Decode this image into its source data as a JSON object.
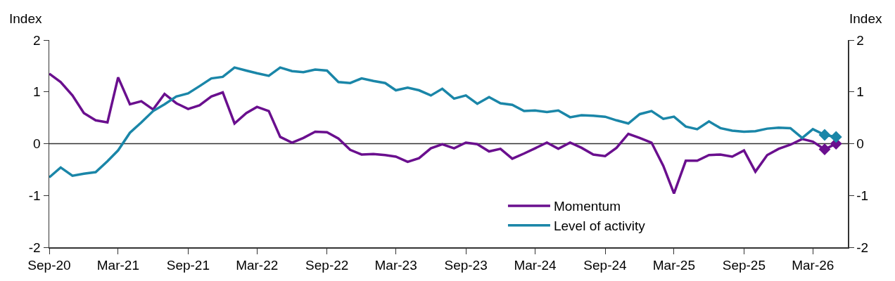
{
  "chart_data": {
    "type": "line",
    "ylabel": "Index",
    "y2label": "Index",
    "x": [
      "2020-09",
      "2020-10",
      "2020-11",
      "2020-12",
      "2021-01",
      "2021-02",
      "2021-03",
      "2021-04",
      "2021-05",
      "2021-06",
      "2021-07",
      "2021-08",
      "2021-09",
      "2021-10",
      "2021-11",
      "2021-12",
      "2022-01",
      "2022-02",
      "2022-03",
      "2022-04",
      "2022-05",
      "2022-06",
      "2022-07",
      "2022-08",
      "2022-09",
      "2022-10",
      "2022-11",
      "2022-12",
      "2023-01",
      "2023-02",
      "2023-03",
      "2023-04",
      "2023-05",
      "2023-06",
      "2023-07",
      "2023-08",
      "2023-09",
      "2023-10",
      "2023-11",
      "2023-12",
      "2024-01",
      "2024-02",
      "2024-03",
      "2024-04",
      "2024-05",
      "2024-06",
      "2024-07",
      "2024-08",
      "2024-09",
      "2024-10",
      "2024-11",
      "2024-12",
      "2025-01",
      "2025-02",
      "2025-03",
      "2025-04",
      "2025-05",
      "2025-06",
      "2025-07",
      "2025-08",
      "2025-09",
      "2025-10",
      "2025-11",
      "2025-12",
      "2026-01",
      "2026-02",
      "2026-03",
      "2026-04",
      "2026-05"
    ],
    "series": [
      {
        "name": "Momentum",
        "color": "#6a0f8e",
        "values": [
          1.35,
          1.19,
          0.93,
          0.59,
          0.45,
          0.41,
          1.28,
          0.76,
          0.82,
          0.66,
          0.96,
          0.78,
          0.67,
          0.74,
          0.91,
          0.99,
          0.39,
          0.59,
          0.71,
          0.63,
          0.13,
          0.02,
          0.11,
          0.23,
          0.22,
          0.1,
          -0.12,
          -0.21,
          -0.2,
          -0.22,
          -0.25,
          -0.35,
          -0.28,
          -0.09,
          -0.01,
          -0.09,
          0.02,
          -0.01,
          -0.15,
          -0.1,
          -0.29,
          -0.19,
          -0.09,
          0.02,
          -0.1,
          0.02,
          -0.08,
          -0.21,
          -0.24,
          -0.08,
          0.19,
          0.11,
          0.02,
          -0.43,
          -0.96,
          -0.33,
          -0.33,
          -0.22,
          -0.21,
          -0.25,
          -0.13,
          -0.54,
          -0.22,
          -0.1,
          -0.02,
          0.09,
          0.04,
          -0.11,
          0.0
        ]
      },
      {
        "name": "Level of activity",
        "color": "#1a86a8",
        "values": [
          -0.65,
          -0.46,
          -0.62,
          -0.58,
          -0.55,
          -0.34,
          -0.13,
          0.21,
          0.41,
          0.63,
          0.76,
          0.91,
          0.97,
          1.11,
          1.26,
          1.29,
          1.47,
          1.41,
          1.36,
          1.31,
          1.47,
          1.4,
          1.38,
          1.43,
          1.41,
          1.19,
          1.17,
          1.26,
          1.21,
          1.17,
          1.03,
          1.08,
          1.03,
          0.93,
          1.06,
          0.87,
          0.93,
          0.77,
          0.9,
          0.78,
          0.75,
          0.63,
          0.64,
          0.61,
          0.64,
          0.51,
          0.55,
          0.54,
          0.52,
          0.45,
          0.39,
          0.57,
          0.63,
          0.48,
          0.52,
          0.33,
          0.28,
          0.43,
          0.3,
          0.25,
          0.23,
          0.24,
          0.29,
          0.31,
          0.3,
          0.11,
          0.28,
          0.17,
          0.13
        ]
      },
      {
        "type": "scatter",
        "marker": "diamond",
        "color": "#6a0f8e",
        "x": [
          "2026-04",
          "2026-05"
        ],
        "values": [
          -0.11,
          0.0
        ]
      },
      {
        "type": "scatter",
        "marker": "diamond",
        "color": "#1a86a8",
        "x": [
          "2026-04",
          "2026-05"
        ],
        "values": [
          0.17,
          0.13
        ]
      }
    ],
    "xlim": [
      "2020-09",
      "2026-06"
    ],
    "xticks": [
      {
        "value": "2020-09",
        "label": "Sep-20"
      },
      {
        "value": "2021-03",
        "label": "Mar-21"
      },
      {
        "value": "2021-09",
        "label": "Sep-21"
      },
      {
        "value": "2022-03",
        "label": "Mar-22"
      },
      {
        "value": "2022-09",
        "label": "Sep-22"
      },
      {
        "value": "2023-03",
        "label": "Mar-23"
      },
      {
        "value": "2023-09",
        "label": "Sep-23"
      },
      {
        "value": "2024-03",
        "label": "Mar-24"
      },
      {
        "value": "2024-09",
        "label": "Sep-24"
      },
      {
        "value": "2025-03",
        "label": "Mar-25"
      },
      {
        "value": "2025-09",
        "label": "Sep-25"
      },
      {
        "value": "2026-03",
        "label": "Mar-26"
      }
    ],
    "ylim": [
      -2,
      2
    ],
    "yticks": [
      -2,
      -1,
      0,
      1,
      2
    ],
    "y2lim": [
      -2,
      2
    ],
    "y2ticks": [
      -2,
      -1,
      0,
      1,
      2
    ],
    "ref_lines": [
      {
        "axis": "y",
        "value": 0,
        "color": "#333333"
      }
    ],
    "legend": "bottom right",
    "marker": "none",
    "line_style": "solid"
  }
}
